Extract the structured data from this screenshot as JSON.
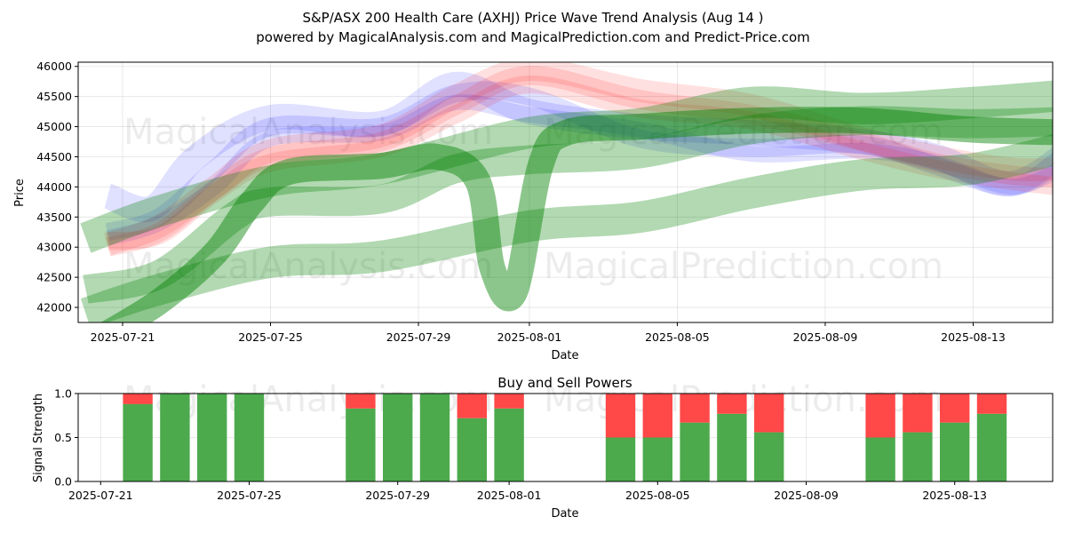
{
  "chart_data": [
    {
      "type": "area",
      "title_line1": "S&P/ASX 200 Health Care (AXHJ) Price Wave Trend Analysis (Aug 14 )",
      "title_line2": "powered by MagicalAnalysis.com and MagicalPrediction.com and Predict-Price.com",
      "xlabel": "Date",
      "ylabel": "Price",
      "ylim": [
        41750,
        46070
      ],
      "y_ticks": [
        42000,
        42500,
        43000,
        43500,
        44000,
        44500,
        45000,
        45500,
        46000
      ],
      "x_ticks": [
        "2025-07-21",
        "2025-07-25",
        "2025-07-29",
        "2025-08-01",
        "2025-08-05",
        "2025-08-09",
        "2025-08-13"
      ],
      "grid": true,
      "watermarks": [
        "MagicalAnalysis.com",
        "MagicalPrediction.com"
      ],
      "series": [
        {
          "name": "blue wave 1",
          "color": "#0000ff",
          "alpha": 0.12,
          "band": 420,
          "x": [
            -0.4,
            0.8,
            2.0,
            4.0,
            7.0,
            9.0,
            11.0,
            14.0,
            17.0,
            20.0,
            22.0,
            24.0,
            25.6
          ],
          "y": [
            43850,
            43650,
            44500,
            45150,
            45050,
            45700,
            45250,
            45000,
            44900,
            44750,
            44500,
            44050,
            44600
          ]
        },
        {
          "name": "blue wave 2",
          "color": "#0000ff",
          "alpha": 0.12,
          "band": 300,
          "x": [
            -0.4,
            1.0,
            2.5,
            4.0,
            7.0,
            9.0,
            11.0,
            14.0,
            17.0,
            20.0,
            22.0,
            24.0,
            25.4
          ],
          "y": [
            43250,
            43500,
            44300,
            45000,
            45000,
            45550,
            45500,
            44800,
            44650,
            44700,
            44350,
            44000,
            44500
          ]
        },
        {
          "name": "blue wave 3",
          "color": "#0000ff",
          "alpha": 0.12,
          "band": 260,
          "x": [
            -0.4,
            1.0,
            2.5,
            4.0,
            7.0,
            9.0,
            11.0,
            14.0,
            17.0,
            20.0,
            22.0,
            24.0,
            25.4
          ],
          "y": [
            43150,
            43400,
            44000,
            44800,
            44900,
            45400,
            45200,
            44950,
            44550,
            44600,
            44400,
            44000,
            44300
          ]
        },
        {
          "name": "red wave 1",
          "color": "#ff0000",
          "alpha": 0.12,
          "band": 380,
          "x": [
            -0.4,
            1.0,
            2.5,
            4.0,
            7.0,
            9.0,
            11.0,
            14.0,
            17.0,
            20.0,
            22.0,
            24.0,
            25.4
          ],
          "y": [
            43050,
            43350,
            44000,
            44600,
            44850,
            45500,
            45950,
            45600,
            45350,
            44800,
            44500,
            44300,
            44300
          ]
        },
        {
          "name": "red wave 2",
          "color": "#ff0000",
          "alpha": 0.12,
          "band": 320,
          "x": [
            -0.4,
            1.0,
            2.5,
            4.0,
            7.0,
            9.0,
            11.0,
            14.0,
            17.0,
            20.0,
            22.0,
            24.0,
            25.4
          ],
          "y": [
            43000,
            43250,
            43950,
            44500,
            44750,
            45350,
            45850,
            45450,
            45200,
            44750,
            44400,
            44200,
            44150
          ]
        },
        {
          "name": "red wave 3",
          "color": "#ff0000",
          "alpha": 0.12,
          "band": 300,
          "x": [
            -0.4,
            1.0,
            2.5,
            4.0,
            7.0,
            9.0,
            11.0,
            14.0,
            17.0,
            20.0,
            22.0,
            24.0,
            25.4
          ],
          "y": [
            43100,
            43200,
            43900,
            44400,
            44650,
            45200,
            45700,
            45300,
            45100,
            44600,
            44300,
            44100,
            44000
          ]
        },
        {
          "name": "green band low",
          "color": "#008000",
          "alpha": 0.3,
          "band": 520,
          "x": [
            -1.0,
            1.0,
            4.0,
            7.0,
            11.0,
            14.0,
            17.0,
            20.0,
            23.0,
            26.0
          ],
          "y": [
            41900,
            42300,
            42750,
            42850,
            43350,
            43500,
            43900,
            44200,
            44300,
            44750
          ]
        },
        {
          "name": "green band high",
          "color": "#008000",
          "alpha": 0.3,
          "band": 520,
          "x": [
            -1.0,
            1.0,
            4.0,
            7.0,
            11.0,
            14.0,
            17.0,
            20.0,
            23.0,
            26.0
          ],
          "y": [
            43150,
            43600,
            44100,
            44300,
            44900,
            45050,
            45400,
            45300,
            45400,
            45550
          ]
        },
        {
          "name": "green band mid",
          "color": "#008000",
          "alpha": 0.3,
          "band": 480,
          "x": [
            -1.0,
            1.0,
            3.0,
            4.0,
            7.0,
            9.0,
            11.0,
            14.0,
            17.0,
            20.0,
            23.0,
            26.0
          ],
          "y": [
            42300,
            42550,
            43500,
            43750,
            43800,
            44300,
            44450,
            44550,
            44950,
            45100,
            45050,
            45100
          ]
        },
        {
          "name": "green wave",
          "color": "#008000",
          "alpha": 0.45,
          "band": 430,
          "x": [
            -0.6,
            1.0,
            2.5,
            3.5,
            4.5,
            7.0,
            8.5,
            9.6,
            10.0,
            10.6,
            11.3,
            12.0,
            14.0,
            17.0,
            20.0,
            23.0,
            26.0
          ],
          "y": [
            41500,
            42100,
            42900,
            43750,
            44250,
            44350,
            44500,
            44100,
            42650,
            42250,
            44350,
            44900,
            45000,
            45100,
            45100,
            44950,
            44900
          ]
        }
      ]
    },
    {
      "type": "bar",
      "title": "Buy and Sell Powers",
      "xlabel": "Date",
      "ylabel": "Signal Strength",
      "ylim": [
        0,
        1
      ],
      "y_ticks": [
        "0.0",
        "0.5",
        "1.0"
      ],
      "x_ticks": [
        "2025-07-21",
        "2025-07-25",
        "2025-07-29",
        "2025-08-01",
        "2025-08-05",
        "2025-08-09",
        "2025-08-13"
      ],
      "buy_color": "#4caa4c",
      "sell_color": "#ff4848",
      "bars": [
        {
          "date": "2025-07-22",
          "buy": 0.88
        },
        {
          "date": "2025-07-23",
          "buy": 1.0
        },
        {
          "date": "2025-07-24",
          "buy": 1.0
        },
        {
          "date": "2025-07-25",
          "buy": 1.0
        },
        {
          "date": "2025-07-28",
          "buy": 0.83
        },
        {
          "date": "2025-07-29",
          "buy": 1.0
        },
        {
          "date": "2025-07-30",
          "buy": 1.0
        },
        {
          "date": "2025-07-31",
          "buy": 0.72
        },
        {
          "date": "2025-08-01",
          "buy": 0.83
        },
        {
          "date": "2025-08-04",
          "buy": 0.5
        },
        {
          "date": "2025-08-05",
          "buy": 0.5
        },
        {
          "date": "2025-08-06",
          "buy": 0.67
        },
        {
          "date": "2025-08-07",
          "buy": 0.77
        },
        {
          "date": "2025-08-08",
          "buy": 0.56
        },
        {
          "date": "2025-08-11",
          "buy": 0.5
        },
        {
          "date": "2025-08-12",
          "buy": 0.56
        },
        {
          "date": "2025-08-13",
          "buy": 0.67
        },
        {
          "date": "2025-08-14",
          "buy": 0.77
        }
      ]
    }
  ]
}
